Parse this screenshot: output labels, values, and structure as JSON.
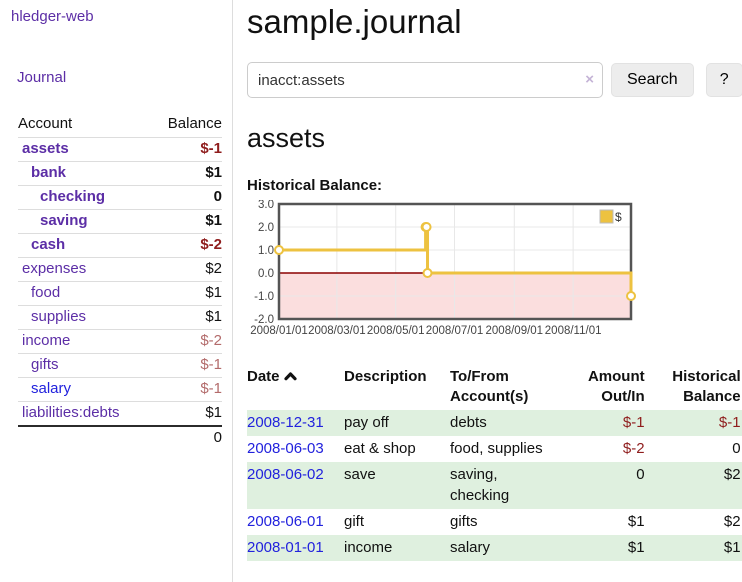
{
  "app": {
    "title": "hledger-web"
  },
  "colors": {
    "accent_purple": "#5c2ea6",
    "link_blue": "#2222dd",
    "negative_dark": "#8f1d1d",
    "negative_light": "#b36b6b",
    "row_green": "#dff0df",
    "chart_series_gold": "#edc240",
    "chart_negative_fill": "#fbdede",
    "chart_zero_line": "#8b0000",
    "chart_grid": "#e8e8e8",
    "chart_border": "#545454"
  },
  "sidebar": {
    "nav_journal": "Journal",
    "accounts_table": {
      "headers": {
        "account": "Account",
        "balance": "Balance"
      },
      "rows": [
        {
          "account": "assets",
          "balance": "$-1"
        },
        {
          "account": "bank",
          "balance": "$1"
        },
        {
          "account": "checking",
          "balance": "0"
        },
        {
          "account": "saving",
          "balance": "$1"
        },
        {
          "account": "cash",
          "balance": "$-2"
        },
        {
          "account": "expenses",
          "balance": "$2"
        },
        {
          "account": "food",
          "balance": "$1"
        },
        {
          "account": "supplies",
          "balance": "$1"
        },
        {
          "account": "income",
          "balance": "$-2"
        },
        {
          "account": "gifts",
          "balance": "$-1"
        },
        {
          "account": "salary",
          "balance": "$-1"
        },
        {
          "account": "liabilities:debts",
          "balance": "$1"
        }
      ],
      "total": "0"
    }
  },
  "main": {
    "title": "sample.journal",
    "search": {
      "value": "inacct:assets",
      "clear_icon": "×",
      "button_label": "Search",
      "help_label": "?"
    },
    "account_heading": "assets",
    "chart_label": "Historical Balance:"
  },
  "chart_data": {
    "type": "line",
    "line_style": "steps",
    "title": "Historical Balance",
    "legend": {
      "label": "$",
      "position": "top-right"
    },
    "x_range_days": [
      0,
      365
    ],
    "x_ticks": [
      {
        "label": "2008/01/01",
        "day": 0
      },
      {
        "label": "2008/03/01",
        "day": 60
      },
      {
        "label": "2008/05/01",
        "day": 121
      },
      {
        "label": "2008/07/01",
        "day": 182
      },
      {
        "label": "2008/09/01",
        "day": 244
      },
      {
        "label": "2008/11/01",
        "day": 305
      }
    ],
    "y_range": [
      -2.0,
      3.0
    ],
    "y_ticks": [
      {
        "label": "3.0",
        "value": 3
      },
      {
        "label": "2.0",
        "value": 2
      },
      {
        "label": "1.0",
        "value": 1
      },
      {
        "label": "0.0",
        "value": 0
      },
      {
        "label": "-1.0",
        "value": -1
      },
      {
        "label": "-2.0",
        "value": -2
      }
    ],
    "negative_region_shaded": true,
    "grid": true,
    "series": [
      {
        "name": "$",
        "color": "#edc240",
        "points": [
          {
            "date": "2008-01-01",
            "day": 0,
            "value": 1
          },
          {
            "date": "2008-06-01",
            "day": 152,
            "value": 2
          },
          {
            "date": "2008-06-02",
            "day": 153,
            "value": 2
          },
          {
            "date": "2008-06-03",
            "day": 154,
            "value": 0
          },
          {
            "date": "2008-12-31",
            "day": 365,
            "value": -1
          }
        ]
      }
    ]
  },
  "register_table": {
    "headers": {
      "date": "Date",
      "description": "Description",
      "accounts": "To/From Account(s)",
      "amount": "Amount Out/In",
      "balance": "Historical Balance"
    },
    "rows": [
      {
        "date": "2008-12-31",
        "description": "pay off",
        "accounts": "debts",
        "amount": "$-1",
        "balance": "$-1"
      },
      {
        "date": "2008-06-03",
        "description": "eat & shop",
        "accounts": "food, supplies",
        "amount": "$-2",
        "balance": "0"
      },
      {
        "date": "2008-06-02",
        "description": "save",
        "accounts": "saving, checking",
        "amount": "0",
        "balance": "$2"
      },
      {
        "date": "2008-06-01",
        "description": "gift",
        "accounts": "gifts",
        "amount": "$1",
        "balance": "$2"
      },
      {
        "date": "2008-01-01",
        "description": "income",
        "accounts": "salary",
        "amount": "$1",
        "balance": "$1"
      }
    ]
  }
}
